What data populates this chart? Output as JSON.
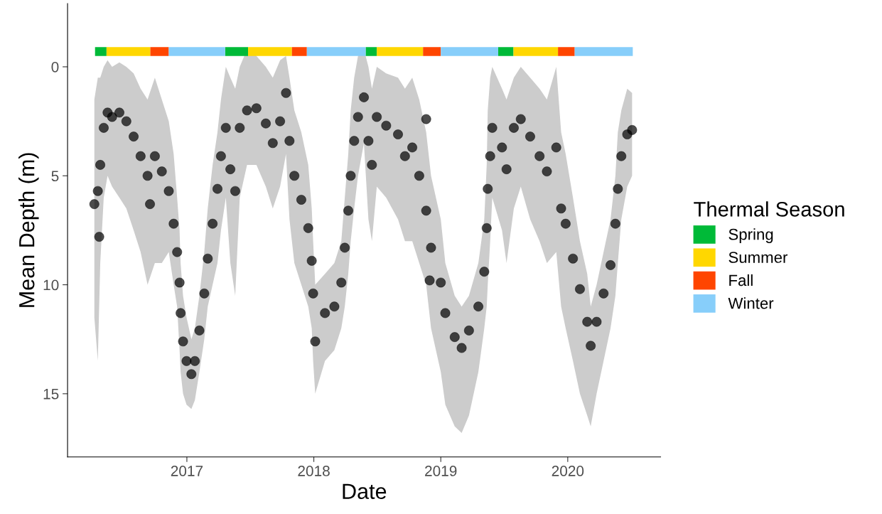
{
  "chart_data": {
    "type": "scatter",
    "xlabel": "Date",
    "ylabel": "Mean Depth (m)",
    "legend_title": "Thermal Season",
    "xlim": [
      "2016-01-24",
      "2020-09-24"
    ],
    "xticks": [
      {
        "value": "2017-01-01",
        "label": "2017"
      },
      {
        "value": "2018-01-01",
        "label": "2018"
      },
      {
        "value": "2019-01-01",
        "label": "2019"
      },
      {
        "value": "2020-01-01",
        "label": "2020"
      }
    ],
    "ylim": [
      17.9,
      -2.9
    ],
    "yticks": [
      0,
      5,
      10,
      15
    ],
    "grid": false,
    "legend": "right",
    "marker": "circle",
    "series": [
      {
        "color": "#000000",
        "x": [
          "2016-04-10",
          "2016-04-20",
          "2016-04-27",
          "2016-05-07",
          "2016-05-18",
          "2016-05-31",
          "2016-06-21",
          "2016-07-11",
          "2016-08-01",
          "2016-08-21",
          "2016-09-10",
          "2016-10-01",
          "2016-10-21",
          "2016-11-10",
          "2016-11-24",
          "2016-12-04",
          "2016-12-11",
          "2016-12-14",
          "2016-12-21",
          "2016-12-31",
          "2017-01-14",
          "2017-01-24",
          "2017-02-06",
          "2017-02-20",
          "2017-03-02",
          "2017-03-16",
          "2017-03-30",
          "2017-04-09",
          "2017-04-23",
          "2017-05-06",
          "2017-05-20",
          "2017-06-02",
          "2017-06-23",
          "2017-07-20",
          "2017-08-16",
          "2017-09-05",
          "2017-09-26",
          "2017-10-13",
          "2017-10-23",
          "2017-11-06",
          "2017-11-26",
          "2017-12-16",
          "2017-12-26",
          "2017-12-30",
          "2018-01-05",
          "2018-02-02",
          "2018-03-01",
          "2018-03-21",
          "2018-03-31",
          "2018-04-10",
          "2018-04-17",
          "2018-04-27",
          "2018-05-08",
          "2018-05-25",
          "2018-06-07",
          "2018-06-17",
          "2018-07-01",
          "2018-07-28",
          "2018-08-31",
          "2018-09-20",
          "2018-10-11",
          "2018-10-31",
          "2018-11-20",
          "2018-12-04",
          "2019-01-01",
          "2019-01-14",
          "2019-02-10",
          "2019-03-02",
          "2019-03-23",
          "2019-04-19",
          "2019-05-06",
          "2019-05-13",
          "2019-05-16",
          "2019-05-23",
          "2019-05-29",
          "2019-06-26",
          "2019-07-09",
          "2019-07-30",
          "2019-08-19",
          "2019-09-15",
          "2019-10-12",
          "2019-11-02",
          "2019-11-29",
          "2019-12-13",
          "2019-12-26",
          "2020-01-16",
          "2020-02-05",
          "2020-02-26",
          "2020-03-07",
          "2020-03-24",
          "2020-04-13",
          "2020-05-03",
          "2020-05-17",
          "2020-05-24",
          "2020-06-03",
          "2020-06-20",
          "2020-07-04"
        ],
        "values": [
          6.3,
          5.7,
          4.5,
          2.8,
          2.1,
          2.3,
          2.1,
          2.5,
          3.2,
          4.1,
          5.0,
          4.1,
          4.8,
          5.7,
          7.2,
          8.5,
          9.9,
          11.3,
          12.6,
          13.5,
          14.1,
          13.5,
          12.1,
          10.4,
          8.8,
          7.2,
          5.6,
          4.1,
          2.8,
          4.7,
          5.7,
          2.8,
          2.0,
          1.9,
          2.6,
          3.5,
          2.5,
          1.2,
          3.4,
          5.0,
          6.1,
          7.4,
          8.9,
          10.4,
          12.6,
          11.3,
          11.0,
          9.9,
          8.3,
          6.6,
          5.0,
          3.4,
          2.3,
          1.4,
          3.4,
          4.5,
          2.3,
          2.7,
          3.1,
          4.1,
          3.7,
          5.0,
          6.6,
          8.3,
          9.9,
          11.3,
          12.4,
          12.9,
          12.1,
          11.0,
          9.4,
          7.4,
          5.6,
          4.1,
          2.8,
          3.7,
          4.7,
          2.8,
          2.4,
          3.2,
          4.1,
          4.8,
          3.7,
          6.5,
          7.2,
          8.8,
          10.2,
          11.7,
          12.8,
          11.7,
          10.4,
          9.1,
          7.2,
          5.6,
          4.1,
          3.1,
          2.9
        ],
        "lower": [
          1.5,
          0.5,
          0.5,
          0,
          -0.3,
          0,
          -0.2,
          0,
          0.3,
          1,
          1.5,
          0.5,
          1.5,
          2.5,
          4,
          6,
          7.5,
          9,
          10.5,
          11.5,
          12.5,
          12,
          10.5,
          8.5,
          6.5,
          4.5,
          3,
          1.5,
          0,
          0.5,
          1,
          0,
          -0.8,
          -0.5,
          0,
          0.5,
          -0.3,
          -0.5,
          0.5,
          2,
          3,
          4.5,
          6.5,
          8,
          10,
          9.5,
          9,
          8,
          6,
          4,
          2,
          0.5,
          -0.5,
          -0.8,
          0,
          1,
          0,
          0.3,
          0.5,
          1,
          0.5,
          1.5,
          3,
          5,
          7,
          9,
          10.5,
          11,
          10.5,
          9,
          7,
          4.5,
          2,
          0.5,
          0,
          1,
          1.5,
          0.5,
          0,
          0.5,
          1,
          1.5,
          0,
          3,
          4,
          6,
          8,
          9.5,
          11,
          10,
          8.5,
          7,
          5,
          3,
          2,
          1,
          1.2
        ],
        "upper": [
          11.5,
          13.5,
          9,
          6,
          5,
          5.5,
          6,
          6.5,
          7.5,
          8.5,
          10,
          9,
          9,
          8.5,
          10,
          11,
          13,
          14,
          15,
          15.5,
          15.7,
          15.3,
          14,
          12.5,
          11,
          10,
          9,
          7.5,
          6,
          9,
          10.5,
          6,
          4.5,
          4.5,
          5.5,
          6.5,
          5.5,
          4,
          7,
          9,
          10,
          11,
          12,
          13.5,
          15,
          13.5,
          13,
          12,
          11,
          9.5,
          8,
          6.5,
          5,
          3.5,
          7,
          8,
          5.5,
          6,
          7,
          8,
          8,
          9,
          10,
          12,
          14,
          15.5,
          16.5,
          16.8,
          16,
          14,
          12,
          11,
          10,
          8,
          6,
          7.5,
          9,
          6.5,
          5.5,
          7,
          8,
          9,
          8.5,
          11,
          12,
          13.5,
          15,
          16,
          16.5,
          15,
          13.5,
          12,
          10.5,
          9,
          7,
          5.5,
          5
        ]
      },
      {
        "color": "#000000",
        "x": [
          "2016-04-24",
          "2016-09-17",
          "2018-11-20",
          "2018-11-30"
        ],
        "values": [
          7.8,
          6.3,
          2.4,
          9.8
        ]
      },
      {
        "type": "line",
        "marker": "none",
        "name": "Spring",
        "color": "#00ba38",
        "x": [
          "2016-04-12",
          "2016-05-15",
          "2017-04-21",
          "2017-06-26",
          "2018-05-30",
          "2018-07-01",
          "2019-06-15",
          "2019-07-29"
        ],
        "values": [
          -0.7,
          -0.7,
          -0.7,
          -0.7,
          -0.7,
          -0.7,
          -0.7,
          -0.7
        ]
      },
      {
        "type": "line",
        "marker": "none",
        "name": "Summer",
        "color": "#ffd700",
        "x": [
          "2016-05-15",
          "2016-09-18",
          "2017-06-26",
          "2017-10-30",
          "2018-07-01",
          "2018-11-11",
          "2019-07-29",
          "2019-12-04"
        ],
        "values": [
          -0.7,
          -0.7,
          -0.7,
          -0.7,
          -0.7,
          -0.7,
          -0.7,
          -0.7
        ]
      },
      {
        "type": "line",
        "marker": "none",
        "name": "Fall",
        "color": "#ff4500",
        "x": [
          "2016-09-18",
          "2016-11-10",
          "2017-10-30",
          "2017-12-12",
          "2018-11-11",
          "2019-01-01",
          "2019-12-04",
          "2020-01-21"
        ],
        "values": [
          -0.7,
          -0.7,
          -0.7,
          -0.7,
          -0.7,
          -0.7,
          -0.7,
          -0.7
        ]
      },
      {
        "type": "line",
        "marker": "none",
        "name": "Winter",
        "color": "#87cefa",
        "x": [
          "2016-11-10",
          "2017-04-21",
          "2017-12-12",
          "2018-05-30",
          "2019-01-01",
          "2019-06-15",
          "2020-01-21",
          "2020-07-06"
        ],
        "values": [
          -0.7,
          -0.7,
          -0.7,
          -0.7,
          -0.7,
          -0.7,
          -0.7,
          -0.7
        ]
      }
    ]
  }
}
